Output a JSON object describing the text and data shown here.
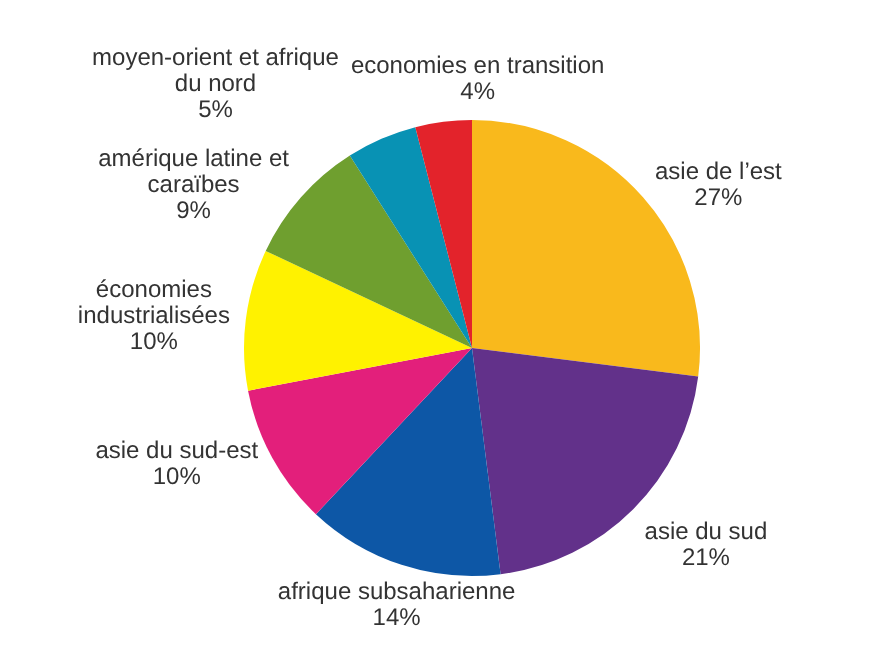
{
  "chart_data": {
    "type": "pie",
    "categories": [
      "asie de l’est",
      "asie du sud",
      "afrique subsaharienne",
      "asie du sud-est",
      "économies industrialisées",
      "amérique latine et caraïbes",
      "moyen-orient et afrique du nord",
      "economies en transition"
    ],
    "values": [
      27,
      21,
      14,
      10,
      10,
      9,
      5,
      4
    ],
    "colors": [
      "#f9b91c",
      "#62318a",
      "#0d57a6",
      "#e31f7b",
      "#fff200",
      "#6f9f2f",
      "#0892b4",
      "#e3232b"
    ],
    "value_labels": [
      "27%",
      "21%",
      "14%",
      "10%",
      "10%",
      "9%",
      "5%",
      "4%"
    ],
    "legend": false
  }
}
